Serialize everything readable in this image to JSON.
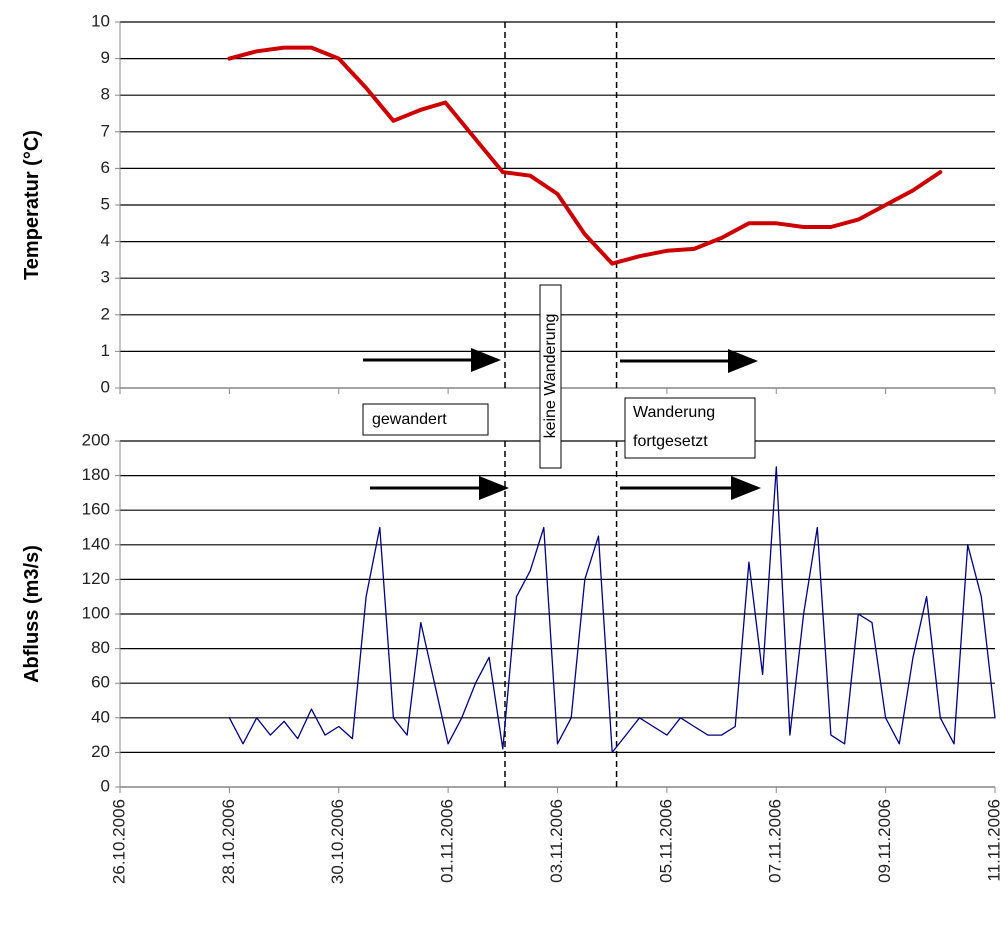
{
  "chart_data": [
    {
      "type": "line",
      "y_label": "Temperatur (°C)",
      "xlim": [
        0,
        16
      ],
      "ylim": [
        0,
        10
      ],
      "yticks": [
        0,
        1,
        2,
        3,
        4,
        5,
        6,
        7,
        8,
        9,
        10
      ],
      "grid": true,
      "series": [
        {
          "color": "#cc0000",
          "x": [
            2,
            2.5,
            3,
            3.5,
            4,
            4.5,
            5,
            5.5,
            5.95,
            6.5,
            7,
            7.5,
            8,
            8.5,
            9,
            9.5,
            10,
            10.5,
            11,
            11.5,
            12,
            12.5,
            13,
            13.5,
            14,
            14.5,
            15
          ],
          "values": [
            9.0,
            9.2,
            9.3,
            9.3,
            9.0,
            8.2,
            7.3,
            7.6,
            7.8,
            6.8,
            5.9,
            5.8,
            5.3,
            4.2,
            3.4,
            3.6,
            3.75,
            3.8,
            4.1,
            4.5,
            4.5,
            4.4,
            4.4,
            4.6,
            5.0,
            5.4,
            5.9
          ]
        }
      ],
      "vlines": [
        7.04,
        9.08
      ],
      "annotations": [
        {
          "text": "gewandert"
        },
        {
          "text": "keine Wanderung"
        },
        {
          "lines": [
            "Wanderung",
            "fortgesetzt"
          ]
        }
      ]
    },
    {
      "type": "line",
      "y_label": "Abfluss (m3/s)",
      "xlim": [
        0,
        16
      ],
      "xticks": [
        {
          "value": 0,
          "label": "26.10.2006"
        },
        {
          "value": 2,
          "label": "28.10.2006"
        },
        {
          "value": 4,
          "label": "30.10.2006"
        },
        {
          "value": 6,
          "label": "01.11.2006"
        },
        {
          "value": 8,
          "label": "03.11.2006"
        },
        {
          "value": 10,
          "label": "05.11.2006"
        },
        {
          "value": 12,
          "label": "07.11.2006"
        },
        {
          "value": 14,
          "label": "09.11.2006"
        },
        {
          "value": 16,
          "label": "11.11.2006"
        }
      ],
      "ylim": [
        0,
        200
      ],
      "yticks": [
        0,
        20,
        40,
        60,
        80,
        100,
        120,
        140,
        160,
        180,
        200
      ],
      "grid": true,
      "series": [
        {
          "color": "#000080",
          "x": [
            2,
            2.25,
            2.5,
            2.75,
            3,
            3.25,
            3.5,
            3.75,
            4,
            4.25,
            4.5,
            4.75,
            5,
            5.25,
            5.5,
            5.75,
            6,
            6.25,
            6.5,
            6.75,
            7,
            7.25,
            7.5,
            7.75,
            8,
            8.25,
            8.5,
            8.75,
            9,
            9.25,
            9.5,
            9.75,
            10,
            10.25,
            10.5,
            10.75,
            11,
            11.25,
            11.5,
            11.75,
            12,
            12.25,
            12.5,
            12.75,
            13,
            13.25,
            13.5,
            13.75,
            14,
            14.25,
            14.5,
            14.75,
            15,
            15.25,
            15.5,
            15.75,
            16
          ],
          "values": [
            40,
            25,
            40,
            30,
            38,
            28,
            45,
            30,
            35,
            28,
            110,
            150,
            40,
            30,
            95,
            60,
            25,
            40,
            60,
            75,
            22,
            110,
            125,
            150,
            25,
            40,
            120,
            145,
            20,
            30,
            40,
            35,
            30,
            40,
            35,
            30,
            30,
            35,
            130,
            65,
            185,
            30,
            100,
            150,
            30,
            25,
            100,
            95,
            40,
            25,
            75,
            110,
            40,
            25,
            140,
            110,
            40
          ]
        }
      ],
      "vlines": [
        7.04,
        9.08
      ]
    }
  ]
}
